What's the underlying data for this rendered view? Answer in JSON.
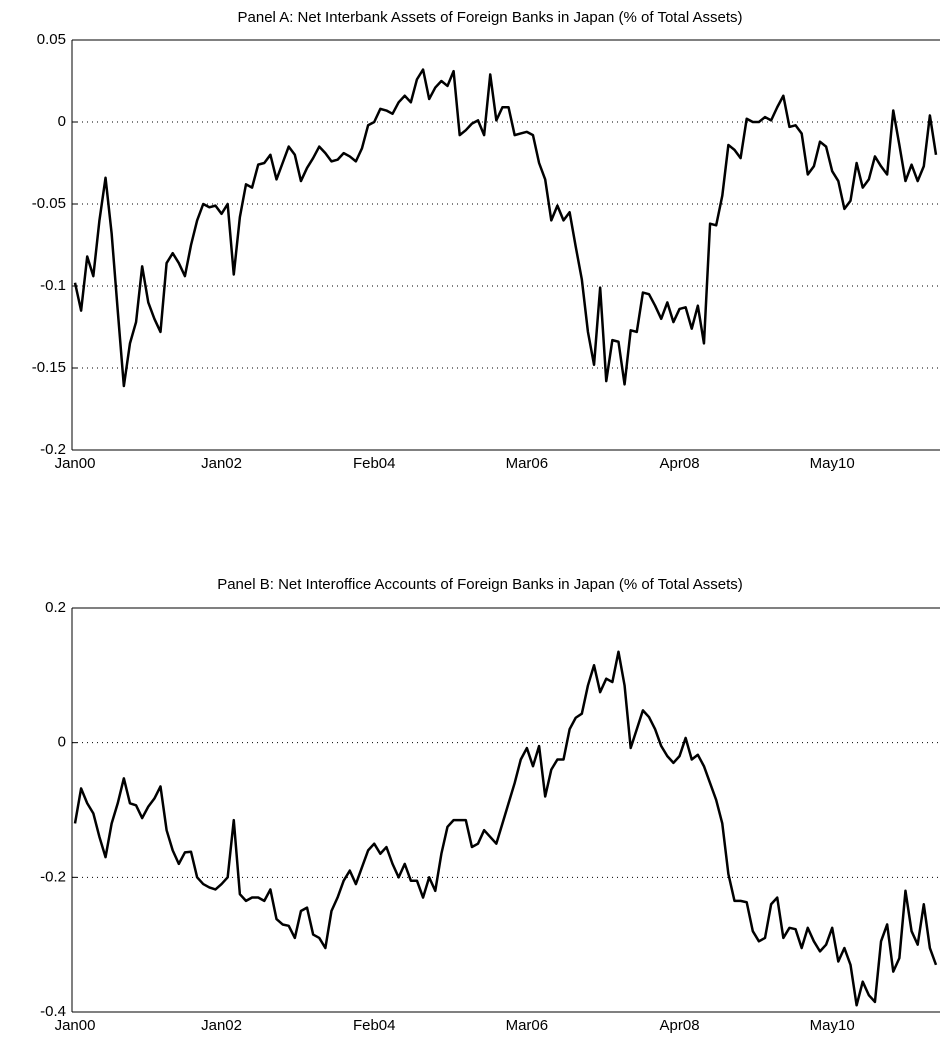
{
  "chart_data": [
    {
      "type": "line",
      "title": "Panel A: Net Interbank Assets of Foreign Banks in Japan (% of Total Assets)",
      "color": "#000000",
      "grid": true,
      "categories": [
        "Jan00",
        null,
        null,
        null,
        null,
        null,
        null,
        null,
        null,
        null,
        null,
        null,
        null,
        null,
        null,
        null,
        null,
        null,
        null,
        null,
        null,
        null,
        null,
        null,
        "Jan02",
        null,
        null,
        null,
        null,
        null,
        null,
        null,
        null,
        null,
        null,
        null,
        null,
        null,
        null,
        null,
        null,
        null,
        null,
        null,
        null,
        null,
        null,
        null,
        null,
        "Feb04",
        null,
        null,
        null,
        null,
        null,
        null,
        null,
        null,
        null,
        null,
        null,
        null,
        null,
        null,
        null,
        null,
        null,
        null,
        null,
        null,
        null,
        null,
        null,
        null,
        "Mar06",
        null,
        null,
        null,
        null,
        null,
        null,
        null,
        null,
        null,
        null,
        null,
        null,
        null,
        null,
        null,
        null,
        null,
        null,
        null,
        null,
        null,
        null,
        null,
        null,
        "Apr08",
        null,
        null,
        null,
        null,
        null,
        null,
        null,
        null,
        null,
        null,
        null,
        null,
        null,
        null,
        null,
        null,
        null,
        null,
        null,
        null,
        null,
        null,
        null,
        null,
        "May10",
        null,
        null,
        null,
        null,
        null,
        null,
        null,
        null,
        null,
        null,
        null,
        null,
        null,
        null,
        null,
        null,
        null
      ],
      "values": [
        -0.098,
        -0.115,
        -0.082,
        -0.094,
        -0.06,
        -0.034,
        -0.068,
        -0.115,
        -0.161,
        -0.135,
        -0.122,
        -0.088,
        -0.11,
        -0.12,
        -0.128,
        -0.086,
        -0.08,
        -0.086,
        -0.094,
        -0.075,
        -0.06,
        -0.05,
        -0.052,
        -0.051,
        -0.056,
        -0.05,
        -0.093,
        -0.058,
        -0.038,
        -0.04,
        -0.026,
        -0.025,
        -0.02,
        -0.035,
        -0.025,
        -0.015,
        -0.02,
        -0.036,
        -0.028,
        -0.022,
        -0.015,
        -0.019,
        -0.024,
        -0.023,
        -0.019,
        -0.021,
        -0.024,
        -0.016,
        -0.002,
        0.0,
        0.008,
        0.007,
        0.005,
        0.012,
        0.016,
        0.012,
        0.026,
        0.032,
        0.014,
        0.021,
        0.025,
        0.022,
        0.031,
        -0.008,
        -0.005,
        -0.001,
        0.001,
        -0.008,
        0.029,
        0.001,
        0.009,
        0.009,
        -0.008,
        -0.007,
        -0.006,
        -0.008,
        -0.025,
        -0.035,
        -0.06,
        -0.051,
        -0.06,
        -0.055,
        -0.076,
        -0.096,
        -0.128,
        -0.148,
        -0.101,
        -0.158,
        -0.133,
        -0.134,
        -0.16,
        -0.127,
        -0.128,
        -0.104,
        -0.105,
        -0.112,
        -0.12,
        -0.11,
        -0.122,
        -0.114,
        -0.113,
        -0.126,
        -0.112,
        -0.135,
        -0.062,
        -0.063,
        -0.045,
        -0.014,
        -0.017,
        -0.022,
        0.002,
        0.0,
        0.0,
        0.003,
        0.001,
        0.009,
        0.016,
        -0.003,
        -0.002,
        -0.007,
        -0.032,
        -0.027,
        -0.012,
        -0.015,
        -0.03,
        -0.036,
        -0.053,
        -0.048,
        -0.025,
        -0.04,
        -0.035,
        -0.021,
        -0.027,
        -0.032,
        0.007,
        -0.014,
        -0.036,
        -0.026,
        -0.036,
        -0.027,
        0.004,
        -0.02
      ],
      "ylim": [
        -0.2,
        0.05
      ],
      "yticks": [
        -0.2,
        -0.15,
        -0.1,
        -0.05,
        0,
        0.05
      ]
    },
    {
      "type": "line",
      "title": "Panel B: Net Interoffice Accounts of Foreign Banks in Japan (% of Total Assets)",
      "color": "#000000",
      "grid": true,
      "categories": [
        "Jan00",
        null,
        null,
        null,
        null,
        null,
        null,
        null,
        null,
        null,
        null,
        null,
        null,
        null,
        null,
        null,
        null,
        null,
        null,
        null,
        null,
        null,
        null,
        null,
        "Jan02",
        null,
        null,
        null,
        null,
        null,
        null,
        null,
        null,
        null,
        null,
        null,
        null,
        null,
        null,
        null,
        null,
        null,
        null,
        null,
        null,
        null,
        null,
        null,
        null,
        "Feb04",
        null,
        null,
        null,
        null,
        null,
        null,
        null,
        null,
        null,
        null,
        null,
        null,
        null,
        null,
        null,
        null,
        null,
        null,
        null,
        null,
        null,
        null,
        null,
        null,
        "Mar06",
        null,
        null,
        null,
        null,
        null,
        null,
        null,
        null,
        null,
        null,
        null,
        null,
        null,
        null,
        null,
        null,
        null,
        null,
        null,
        null,
        null,
        null,
        null,
        null,
        "Apr08",
        null,
        null,
        null,
        null,
        null,
        null,
        null,
        null,
        null,
        null,
        null,
        null,
        null,
        null,
        null,
        null,
        null,
        null,
        null,
        null,
        null,
        null,
        null,
        null,
        "May10",
        null,
        null,
        null,
        null,
        null,
        null,
        null,
        null,
        null,
        null,
        null,
        null,
        null,
        null,
        null,
        null,
        null
      ],
      "values": [
        -0.12,
        -0.068,
        -0.09,
        -0.105,
        -0.14,
        -0.17,
        -0.12,
        -0.09,
        -0.053,
        -0.09,
        -0.093,
        -0.112,
        -0.095,
        -0.083,
        -0.065,
        -0.13,
        -0.16,
        -0.18,
        -0.163,
        -0.162,
        -0.2,
        -0.21,
        -0.215,
        -0.218,
        -0.21,
        -0.2,
        -0.115,
        -0.225,
        -0.235,
        -0.23,
        -0.23,
        -0.235,
        -0.218,
        -0.262,
        -0.27,
        -0.272,
        -0.29,
        -0.25,
        -0.245,
        -0.285,
        -0.29,
        -0.305,
        -0.25,
        -0.23,
        -0.205,
        -0.19,
        -0.21,
        -0.185,
        -0.16,
        -0.15,
        -0.165,
        -0.155,
        -0.18,
        -0.2,
        -0.18,
        -0.205,
        -0.205,
        -0.23,
        -0.2,
        -0.22,
        -0.165,
        -0.125,
        -0.115,
        -0.115,
        -0.115,
        -0.155,
        -0.15,
        -0.13,
        -0.14,
        -0.15,
        -0.12,
        -0.09,
        -0.06,
        -0.025,
        -0.008,
        -0.035,
        -0.005,
        -0.08,
        -0.04,
        -0.025,
        -0.025,
        0.02,
        0.037,
        0.043,
        0.085,
        0.115,
        0.075,
        0.095,
        0.09,
        0.135,
        0.085,
        -0.008,
        0.02,
        0.048,
        0.038,
        0.02,
        -0.005,
        -0.02,
        -0.03,
        -0.02,
        0.007,
        -0.025,
        -0.018,
        -0.035,
        -0.06,
        -0.085,
        -0.12,
        -0.195,
        -0.235,
        -0.235,
        -0.237,
        -0.28,
        -0.295,
        -0.29,
        -0.24,
        -0.23,
        -0.29,
        -0.275,
        -0.277,
        -0.305,
        -0.275,
        -0.295,
        -0.31,
        -0.3,
        -0.275,
        -0.325,
        -0.305,
        -0.33,
        -0.39,
        -0.355,
        -0.375,
        -0.385,
        -0.295,
        -0.27,
        -0.34,
        -0.32,
        -0.22,
        -0.28,
        -0.3,
        -0.24,
        -0.305,
        -0.33
      ],
      "ylim": [
        -0.4,
        0.2
      ],
      "yticks": [
        -0.4,
        -0.2,
        0,
        0.2
      ]
    }
  ]
}
